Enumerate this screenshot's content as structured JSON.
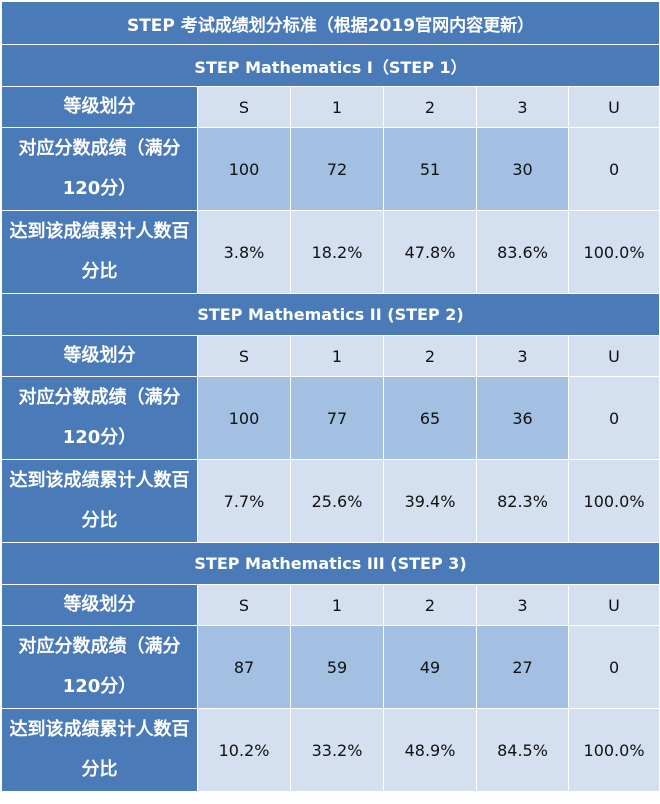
{
  "title": "STEP 考试成绩划分标准（根据2019官网内容更新）",
  "row_labels": {
    "grade": "等级划分",
    "score": "对应分数成绩（满分120分）",
    "percent": "达到该成绩累计人数百分比"
  },
  "grades": [
    "S",
    "1",
    "2",
    "3",
    "U"
  ],
  "sections": [
    {
      "name": "STEP Mathematics I（STEP 1）",
      "scores": [
        "100",
        "72",
        "51",
        "30",
        "0"
      ],
      "percentages": [
        "3.8%",
        "18.2%",
        "47.8%",
        "83.6%",
        "100.0%"
      ]
    },
    {
      "name": "STEP Mathematics II (STEP 2)",
      "scores": [
        "100",
        "77",
        "65",
        "36",
        "0"
      ],
      "percentages": [
        "7.7%",
        "25.6%",
        "39.4%",
        "82.3%",
        "100.0%"
      ]
    },
    {
      "name": "STEP Mathematics III (STEP 3)",
      "scores": [
        "87",
        "59",
        "49",
        "27",
        "0"
      ],
      "percentages": [
        "10.2%",
        "33.2%",
        "48.9%",
        "84.5%",
        "100.0%"
      ]
    }
  ]
}
